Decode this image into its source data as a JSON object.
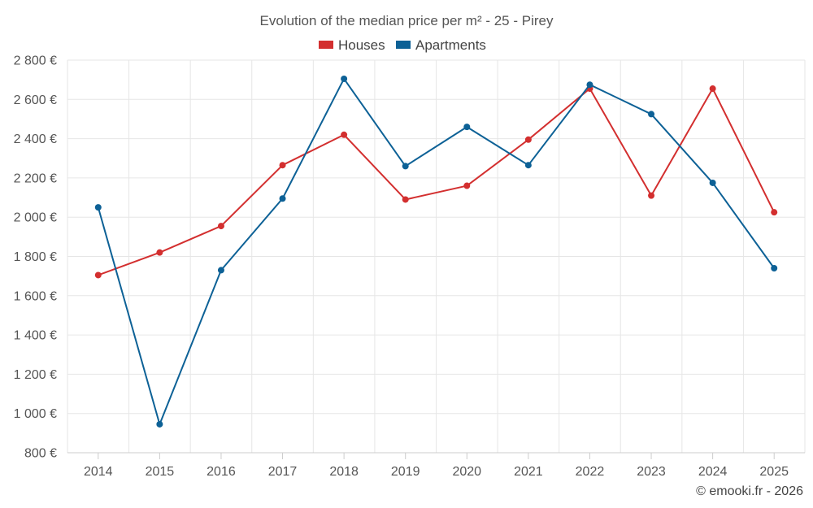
{
  "chart_data": {
    "type": "line",
    "title": "Evolution of the median price per m² - 25 - Pirey",
    "categories": [
      "2014",
      "2015",
      "2016",
      "2017",
      "2018",
      "2019",
      "2020",
      "2021",
      "2022",
      "2023",
      "2024",
      "2025"
    ],
    "series": [
      {
        "name": "Houses",
        "color": "#d32f2f",
        "values": [
          1705,
          1820,
          1955,
          2265,
          2420,
          2090,
          2160,
          2395,
          2655,
          2110,
          2655,
          2025
        ]
      },
      {
        "name": "Apartments",
        "color": "#0d6196",
        "values": [
          2050,
          945,
          1730,
          2095,
          2705,
          2260,
          2460,
          2265,
          2675,
          2525,
          2175,
          1740
        ]
      }
    ],
    "ylim": [
      800,
      2800
    ],
    "yticks": [
      800,
      1000,
      1200,
      1400,
      1600,
      1800,
      2000,
      2200,
      2400,
      2600,
      2800
    ],
    "ytick_labels": [
      "800 €",
      "1 000 €",
      "1 200 €",
      "1 400 €",
      "1 600 €",
      "1 800 €",
      "2 000 €",
      "2 200 €",
      "2 400 €",
      "2 600 €",
      "2 800 €"
    ],
    "xlabel": "",
    "ylabel": "",
    "grid": true,
    "legend": "top-center"
  },
  "credit": "© emooki.fr - 2026"
}
